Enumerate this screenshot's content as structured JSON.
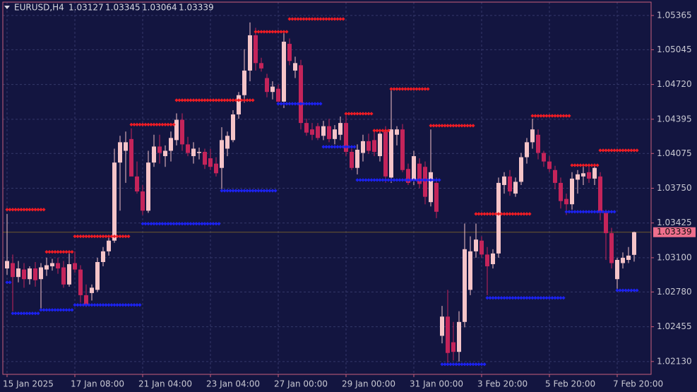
{
  "chart_data": {
    "type": "candlestick",
    "symbol": "EURUSD,H4",
    "grid": true,
    "up_color": "#f5c4c8",
    "down_color": "#c4245a",
    "categories": [
      "15 Jan 2025",
      null,
      null,
      null,
      null,
      null,
      null,
      null,
      null,
      null,
      null,
      null,
      "17 Jan 08:00",
      null,
      null,
      null,
      null,
      null,
      null,
      null,
      null,
      null,
      null,
      null,
      "21 Jan 04:00",
      null,
      null,
      null,
      null,
      null,
      null,
      null,
      null,
      null,
      null,
      null,
      "23 Jan 04:00",
      null,
      null,
      null,
      null,
      null,
      null,
      null,
      null,
      null,
      null,
      null,
      "27 Jan 00:00",
      null,
      null,
      null,
      null,
      null,
      null,
      null,
      null,
      null,
      null,
      null,
      "29 Jan 00:00",
      null,
      null,
      null,
      null,
      null,
      null,
      null,
      null,
      null,
      null,
      null,
      "31 Jan 00:00",
      null,
      null,
      null,
      null,
      null,
      null,
      null,
      null,
      null,
      null,
      null,
      "3 Feb 20:00",
      null,
      null,
      null,
      null,
      null,
      null,
      null,
      null,
      null,
      null,
      null,
      "5 Feb 20:00",
      null,
      null,
      null,
      null,
      null,
      null,
      null,
      null,
      null,
      null,
      null,
      "7 Feb 20:00",
      null,
      null,
      null
    ],
    "open": [
      1.03,
      1.0305,
      1.0292,
      1.0299,
      1.029,
      1.03,
      1.029,
      1.0299,
      1.0302,
      1.0305,
      1.0301,
      1.0285,
      1.0305,
      1.0299,
      1.0275,
      1.0277,
      1.028,
      1.0306,
      1.0316,
      1.0326,
      1.0399,
      1.041,
      1.0421,
      1.0386,
      1.0372,
      1.0354,
      1.0399,
      1.0414,
      1.0405,
      1.041,
      1.042,
      1.0439,
      1.0416,
      1.0405,
      1.0408,
      1.0409,
      1.0403,
      1.0398,
      1.0394,
      1.0412,
      1.042,
      1.0444,
      1.0462,
      1.0485,
      1.0518,
      1.0492,
      1.0478,
      1.0465,
      1.0468,
      1.0456,
      1.051,
      1.0485,
      1.049,
      1.0436,
      1.043,
      1.0433,
      1.0424,
      1.0433,
      1.0421,
      1.0425,
      1.0436,
      1.0409,
      1.0394,
      1.0408,
      1.0419,
      1.042,
      1.0405,
      1.0428,
      1.0385,
      1.0425,
      1.043,
      1.0393,
      1.0382,
      1.0398,
      1.0395,
      1.0362,
      1.038,
      1.0237,
      1.0255,
      1.0231,
      1.0222,
      1.025,
      1.028,
      1.0316,
      1.0326,
      1.0313,
      1.0304,
      1.0314,
      1.0378,
      1.0386,
      1.037,
      1.0381,
      1.0404,
      1.0418,
      1.0425,
      1.0408,
      1.04,
      1.0392,
      1.038,
      1.0365,
      1.036,
      1.0383,
      1.0386,
      1.039,
      1.0384,
      1.0386,
      1.0352,
      1.0333,
      1.029,
      1.0305,
      1.0308,
      1.03127
    ],
    "high": [
      1.0351,
      1.0313,
      1.0307,
      1.0305,
      1.0302,
      1.0306,
      1.0305,
      1.031,
      1.0309,
      1.031,
      1.0307,
      1.0316,
      1.0316,
      1.0303,
      1.0285,
      1.0285,
      1.031,
      1.032,
      1.0329,
      1.0412,
      1.0424,
      1.0428,
      1.0431,
      1.04,
      1.0378,
      1.041,
      1.0425,
      1.0425,
      1.0415,
      1.0428,
      1.0445,
      1.0445,
      1.0423,
      1.0418,
      1.0413,
      1.0412,
      1.0412,
      1.0404,
      1.0432,
      1.0428,
      1.0448,
      1.0465,
      1.0505,
      1.053,
      1.0525,
      1.0497,
      1.0482,
      1.0475,
      1.0472,
      1.0522,
      1.0515,
      1.0498,
      1.0495,
      1.044,
      1.0436,
      1.0436,
      1.0438,
      1.044,
      1.0434,
      1.0442,
      1.0443,
      1.0412,
      1.0416,
      1.0425,
      1.0426,
      1.043,
      1.043,
      1.0433,
      1.0468,
      1.0433,
      1.0435,
      1.0398,
      1.041,
      1.0403,
      1.04,
      1.043,
      1.0385,
      1.0265,
      1.028,
      1.025,
      1.026,
      1.0342,
      1.033,
      1.0342,
      1.033,
      1.032,
      1.0318,
      1.0385,
      1.039,
      1.0392,
      1.0385,
      1.0408,
      1.0422,
      1.044,
      1.043,
      1.041,
      1.0405,
      1.0396,
      1.0385,
      1.037,
      1.039,
      1.0392,
      1.0395,
      1.0395,
      1.0398,
      1.039,
      1.0355,
      1.0338,
      1.031,
      1.0315,
      1.032,
      1.03345
    ],
    "low": [
      1.0294,
      1.026,
      1.0287,
      1.0282,
      1.0285,
      1.0283,
      1.0262,
      1.0293,
      1.0298,
      1.0295,
      1.0282,
      1.0283,
      1.0296,
      1.0268,
      1.0264,
      1.027,
      1.0278,
      1.0302,
      1.0312,
      1.0324,
      1.0354,
      1.038,
      1.0388,
      1.037,
      1.035,
      1.0352,
      1.0395,
      1.0398,
      1.0395,
      1.04,
      1.0415,
      1.041,
      1.0405,
      1.0398,
      1.0402,
      1.0393,
      1.0392,
      1.0386,
      1.0373,
      1.0405,
      1.0418,
      1.044,
      1.0455,
      1.0475,
      1.0485,
      1.0484,
      1.046,
      1.0458,
      1.0455,
      1.045,
      1.049,
      1.0478,
      1.043,
      1.0424,
      1.042,
      1.042,
      1.042,
      1.0418,
      1.0416,
      1.042,
      1.0405,
      1.0392,
      1.0388,
      1.04,
      1.0407,
      1.0405,
      1.04,
      1.038,
      1.038,
      1.0415,
      1.039,
      1.0378,
      1.0378,
      1.0375,
      1.036,
      1.0358,
      1.0347,
      1.023,
      1.0212,
      1.0214,
      1.0213,
      1.0245,
      1.0275,
      1.031,
      1.031,
      1.0275,
      1.03,
      1.031,
      1.037,
      1.0368,
      1.0367,
      1.0378,
      1.0398,
      1.0412,
      1.0402,
      1.0395,
      1.039,
      1.0374,
      1.0356,
      1.035,
      1.0355,
      1.037,
      1.0378,
      1.038,
      1.0378,
      1.0345,
      1.0308,
      1.03,
      1.028,
      1.03,
      1.0305,
      1.03064
    ],
    "close": [
      1.0307,
      1.0292,
      1.03,
      1.029,
      1.03,
      1.0289,
      1.0301,
      1.0303,
      1.0305,
      1.03,
      1.0285,
      1.0304,
      1.0299,
      1.0275,
      1.0266,
      1.0282,
      1.0306,
      1.0316,
      1.0326,
      1.0399,
      1.0418,
      1.0418,
      1.0386,
      1.0372,
      1.0354,
      1.0399,
      1.0414,
      1.0408,
      1.041,
      1.0422,
      1.0439,
      1.0416,
      1.0408,
      1.0412,
      1.0409,
      1.0397,
      1.0395,
      1.0389,
      1.042,
      1.0424,
      1.0444,
      1.0462,
      1.0485,
      1.0518,
      1.0492,
      1.0487,
      1.0465,
      1.047,
      1.0456,
      1.0512,
      1.0494,
      1.0492,
      1.0436,
      1.0427,
      1.0425,
      1.0422,
      1.0433,
      1.0421,
      1.043,
      1.0436,
      1.0409,
      1.0394,
      1.0411,
      1.0419,
      1.041,
      1.0409,
      1.0426,
      1.0386,
      1.043,
      1.043,
      1.0392,
      1.038,
      1.0405,
      1.0379,
      1.0367,
      1.039,
      1.0353,
      1.0255,
      1.0221,
      1.0222,
      1.025,
      1.0318,
      1.0316,
      1.0327,
      1.0313,
      1.0302,
      1.0314,
      1.038,
      1.0386,
      1.0372,
      1.0381,
      1.0404,
      1.0418,
      1.043,
      1.0408,
      1.04,
      1.0393,
      1.038,
      1.0363,
      1.036,
      1.0384,
      1.0388,
      1.0389,
      1.0384,
      1.0394,
      1.0352,
      1.0333,
      1.0305,
      1.0308,
      1.031,
      1.0312,
      1.03339
    ],
    "series": [
      {
        "color": "#f01c24",
        "values": [
          1.0355,
          1.0355,
          1.0355,
          1.0355,
          1.0355,
          1.0355,
          1.0355,
          1.03155,
          1.03155,
          1.03155,
          1.03155,
          1.03155,
          1.033,
          1.033,
          1.033,
          1.033,
          1.033,
          1.033,
          1.033,
          1.033,
          1.033,
          1.033,
          1.04345,
          1.04345,
          1.04345,
          1.04345,
          1.04345,
          1.04345,
          1.04345,
          1.04345,
          1.04573,
          1.04573,
          1.04573,
          1.04573,
          1.04573,
          1.04573,
          1.04573,
          1.04573,
          1.04573,
          1.04573,
          1.04573,
          1.04573,
          1.04573,
          1.04573,
          1.05213,
          1.05213,
          1.05213,
          1.05213,
          1.05213,
          1.05213,
          1.05332,
          1.05332,
          1.05332,
          1.05332,
          1.05332,
          1.05332,
          1.05332,
          1.05332,
          1.05332,
          1.05332,
          1.04447,
          1.04447,
          1.04447,
          1.04447,
          1.04447,
          1.04289,
          1.04289,
          1.04289,
          1.04678,
          1.04678,
          1.04678,
          1.04678,
          1.04678,
          1.04678,
          1.04678,
          1.04335,
          1.04335,
          1.04335,
          1.04335,
          1.04335,
          1.04335,
          1.04335,
          1.04335,
          1.0351,
          1.0351,
          1.0351,
          1.0351,
          1.0351,
          1.0351,
          1.0351,
          1.0351,
          1.0351,
          1.0351,
          1.04427,
          1.04427,
          1.04427,
          1.04427,
          1.04427,
          1.04427,
          1.04427,
          1.03965,
          1.03965,
          1.03965,
          1.03965,
          1.03965,
          1.04104,
          1.04104,
          1.04104,
          1.04104,
          1.04104,
          1.04104,
          1.04104
        ]
      },
      {
        "color": "#1c22f0",
        "values": [
          1.0287,
          1.0258,
          1.0258,
          1.0258,
          1.0258,
          1.0258,
          1.02612,
          1.02612,
          1.02612,
          1.02612,
          1.02612,
          1.02612,
          1.02659,
          1.02659,
          1.02659,
          1.02659,
          1.02659,
          1.02659,
          1.02659,
          1.02659,
          1.02659,
          1.02659,
          1.02659,
          1.02659,
          1.03418,
          1.03418,
          1.03418,
          1.03418,
          1.03418,
          1.03418,
          1.03418,
          1.03418,
          1.03418,
          1.03418,
          1.03418,
          1.03418,
          1.03418,
          1.03418,
          1.03727,
          1.03727,
          1.03727,
          1.03727,
          1.03727,
          1.03727,
          1.03727,
          1.03727,
          1.03727,
          1.03727,
          1.0454,
          1.0454,
          1.0454,
          1.0454,
          1.0454,
          1.0454,
          1.0454,
          1.0454,
          1.04137,
          1.04137,
          1.04137,
          1.04137,
          1.04137,
          1.04137,
          1.03827,
          1.03827,
          1.03827,
          1.03827,
          1.03827,
          1.03827,
          1.03827,
          1.03827,
          1.03827,
          1.03827,
          1.03827,
          1.03827,
          1.03827,
          1.03827,
          1.03827,
          1.02104,
          1.02104,
          1.02104,
          1.02104,
          1.02104,
          1.02104,
          1.02104,
          1.02104,
          1.02725,
          1.02725,
          1.02725,
          1.02725,
          1.02725,
          1.02725,
          1.02725,
          1.02725,
          1.02725,
          1.02725,
          1.02725,
          1.02725,
          1.02725,
          1.02725,
          1.0353,
          1.0353,
          1.0353,
          1.0353,
          1.0353,
          1.0353,
          1.0353,
          1.0353,
          1.0353,
          1.02795,
          1.02795,
          1.02795,
          1.02795
        ]
      }
    ],
    "ylim": [
      1.0201,
      1.0549
    ],
    "yticks": [
      1.05365,
      1.05045,
      {
        "value": 1.0472,
        "label": "1.04720"
      },
      1.04395,
      1.04075,
      {
        "value": 1.0375,
        "label": "1.03750"
      },
      1.03425,
      {
        "value": 1.031,
        "label": "1.03100"
      },
      {
        "value": 1.0278,
        "label": "1.02780"
      },
      1.02455,
      {
        "value": 1.0213,
        "label": "1.02130"
      }
    ]
  }
}
